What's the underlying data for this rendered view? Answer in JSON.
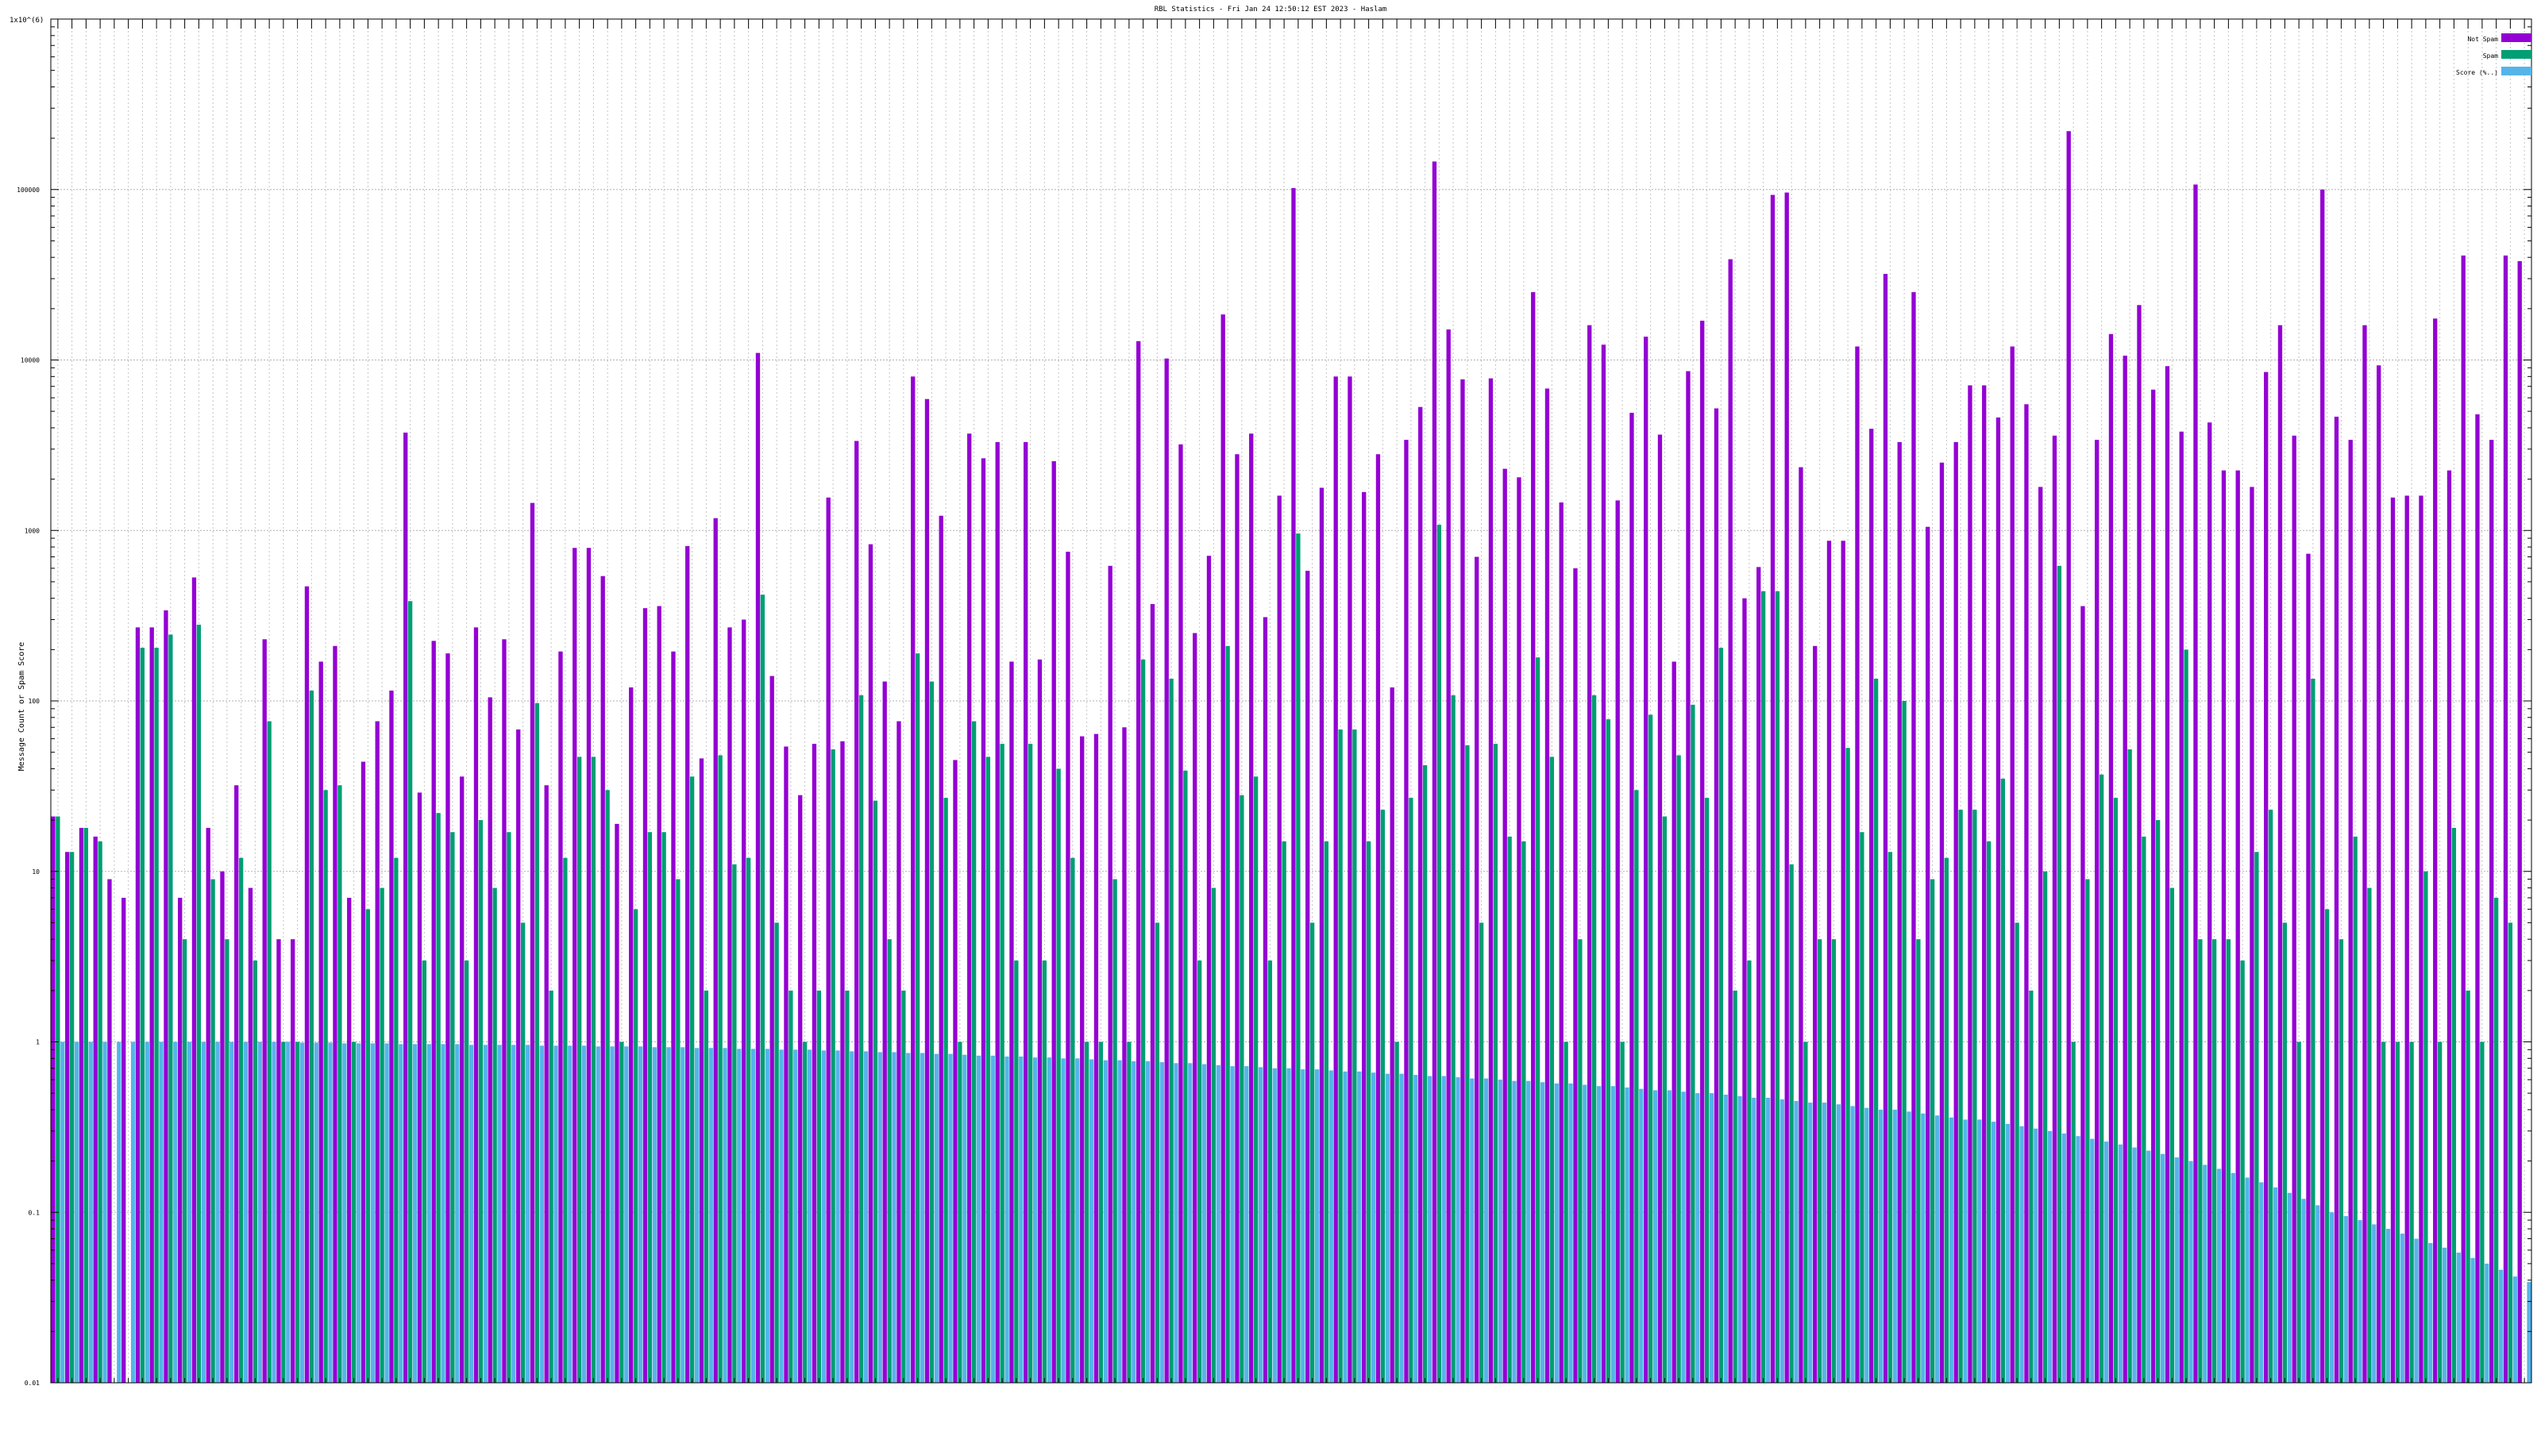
{
  "chart_data": {
    "type": "bar",
    "title": "RBL Statistics - Fri Jan 24 12:50:12 EST 2023 - Haslam",
    "ylabel": "Message Count or Spam Score",
    "xlabel": "",
    "y_top_label": "1x10^(6)",
    "yscale": "log",
    "ylim": [
      0.01,
      1000000
    ],
    "y_ticks": [
      {
        "value": 0.01,
        "label": "0.01"
      },
      {
        "value": 0.1,
        "label": "0.1"
      },
      {
        "value": 1,
        "label": "1"
      },
      {
        "value": 10,
        "label": "10"
      },
      {
        "value": 100,
        "label": "100"
      },
      {
        "value": 1000,
        "label": "1000"
      },
      {
        "value": 10000,
        "label": "10000"
      },
      {
        "value": 100000,
        "label": "100000"
      }
    ],
    "grid": true,
    "legend_position": "top-right",
    "series": [
      {
        "name": "Not Spam",
        "color": "#9400d3",
        "values": [
          21,
          13,
          18,
          16,
          9,
          7,
          270,
          270,
          340,
          7,
          530,
          18,
          10,
          32,
          8,
          230,
          4,
          4,
          470,
          170,
          210,
          7,
          44,
          76,
          115,
          3750,
          29,
          225,
          190,
          36,
          270,
          105,
          230,
          68,
          1450,
          32,
          195,
          790,
          790,
          540,
          19,
          120,
          350,
          360,
          195,
          810,
          46,
          1180,
          270,
          300,
          11000,
          140,
          54,
          28,
          56,
          1560,
          58,
          3350,
          830,
          130,
          76,
          8000,
          5900,
          1220,
          45,
          3700,
          2650,
          3300,
          170,
          3300,
          175,
          2550,
          750,
          62,
          64,
          620,
          70,
          12900,
          370,
          10200,
          3200,
          250,
          710,
          18500,
          2800,
          3700,
          310,
          1600,
          102000,
          580,
          1780,
          8000,
          8000,
          1680,
          2800,
          120,
          3400,
          5300,
          146000,
          15100,
          7700,
          700,
          7800,
          2300,
          2050,
          25000,
          6800,
          1460,
          600,
          16000,
          12300,
          1500,
          4900,
          13700,
          3650,
          170,
          8600,
          17000,
          5200,
          39000,
          400,
          610,
          93000,
          96000,
          2350,
          210,
          870,
          870,
          12000,
          3950,
          32000,
          3300,
          25000,
          1050,
          2500,
          3300,
          7100,
          7100,
          4600,
          12000,
          5500,
          1800,
          3600,
          220000,
          360,
          3400,
          14200,
          10600,
          21000,
          6700,
          9200,
          3800,
          107000,
          4300,
          2250,
          2250,
          1800,
          8500,
          16000,
          3600,
          730,
          100000,
          4650,
          3400,
          16000,
          9300,
          1560,
          1600,
          1600,
          17500,
          2250,
          41000,
          4800,
          3400,
          41000,
          38000
        ]
      },
      {
        "name": "Spam",
        "color": "#009e73",
        "values": [
          21,
          13,
          18,
          15,
          0,
          0,
          205,
          205,
          245,
          4,
          280,
          9,
          4,
          12,
          3,
          76,
          1,
          1,
          115,
          30,
          32,
          1,
          6,
          8,
          12,
          385,
          3,
          22,
          17,
          3,
          20,
          8,
          17,
          5,
          97,
          2,
          12,
          47,
          47,
          30,
          1,
          6,
          17,
          17,
          9,
          36,
          2,
          48,
          11,
          12,
          420,
          5,
          2,
          1,
          2,
          52,
          2,
          108,
          26,
          4,
          2,
          190,
          130,
          27,
          1,
          76,
          47,
          56,
          3,
          56,
          3,
          40,
          12,
          1,
          1,
          9,
          1,
          175,
          5,
          135,
          39,
          3,
          8,
          210,
          28,
          36,
          3,
          15,
          960,
          5,
          15,
          68,
          68,
          15,
          23,
          1,
          27,
          42,
          1080,
          108,
          55,
          5,
          56,
          16,
          15,
          180,
          47,
          1,
          4,
          108,
          78,
          1,
          30,
          83,
          21,
          48,
          95,
          27,
          205,
          2,
          3,
          440,
          440,
          11,
          1,
          4,
          4,
          53,
          17,
          135,
          13,
          100,
          4,
          9,
          12,
          23,
          23,
          15,
          35,
          5,
          2,
          10,
          620,
          1,
          9,
          37,
          27,
          52,
          16,
          20,
          8,
          200,
          4,
          4,
          4,
          3,
          13,
          23,
          5,
          1,
          135,
          6,
          4,
          16,
          8,
          1,
          1,
          1,
          10,
          1,
          18,
          2,
          1,
          7,
          5
        ]
      },
      {
        "name": "Score (%..)",
        "color": "#56b4e9",
        "values": [
          1,
          1,
          1,
          1,
          1,
          1,
          1,
          1,
          1,
          1,
          1,
          1,
          1,
          1,
          1,
          1,
          1,
          0.99,
          0.99,
          0.99,
          0.98,
          0.98,
          0.98,
          0.98,
          0.97,
          0.97,
          0.97,
          0.97,
          0.97,
          0.96,
          0.96,
          0.96,
          0.96,
          0.96,
          0.95,
          0.95,
          0.95,
          0.95,
          0.94,
          0.94,
          0.94,
          0.94,
          0.93,
          0.93,
          0.93,
          0.92,
          0.92,
          0.92,
          0.91,
          0.91,
          0.91,
          0.9,
          0.9,
          0.9,
          0.89,
          0.89,
          0.88,
          0.88,
          0.87,
          0.87,
          0.86,
          0.86,
          0.85,
          0.85,
          0.84,
          0.83,
          0.83,
          0.82,
          0.82,
          0.81,
          0.81,
          0.8,
          0.8,
          0.79,
          0.78,
          0.78,
          0.77,
          0.77,
          0.76,
          0.75,
          0.75,
          0.74,
          0.73,
          0.72,
          0.72,
          0.71,
          0.7,
          0.7,
          0.69,
          0.69,
          0.68,
          0.67,
          0.67,
          0.66,
          0.65,
          0.65,
          0.64,
          0.63,
          0.63,
          0.62,
          0.61,
          0.61,
          0.6,
          0.59,
          0.59,
          0.58,
          0.57,
          0.57,
          0.56,
          0.55,
          0.55,
          0.54,
          0.53,
          0.52,
          0.52,
          0.51,
          0.5,
          0.5,
          0.49,
          0.48,
          0.47,
          0.47,
          0.46,
          0.45,
          0.44,
          0.44,
          0.43,
          0.42,
          0.41,
          0.4,
          0.4,
          0.39,
          0.38,
          0.37,
          0.36,
          0.35,
          0.35,
          0.34,
          0.33,
          0.32,
          0.31,
          0.3,
          0.29,
          0.28,
          0.27,
          0.26,
          0.25,
          0.24,
          0.23,
          0.22,
          0.21,
          0.2,
          0.19,
          0.18,
          0.17,
          0.16,
          0.15,
          0.14,
          0.13,
          0.12,
          0.11,
          0.1,
          0.095,
          0.09,
          0.085,
          0.08,
          0.075,
          0.07,
          0.066,
          0.062,
          0.058,
          0.054,
          0.05,
          0.046,
          0.042,
          0.039,
          0.036,
          0.033,
          0.03,
          0.028,
          0.026,
          0.024,
          0.022,
          0.02,
          0.018,
          0.016
        ]
      }
    ]
  }
}
